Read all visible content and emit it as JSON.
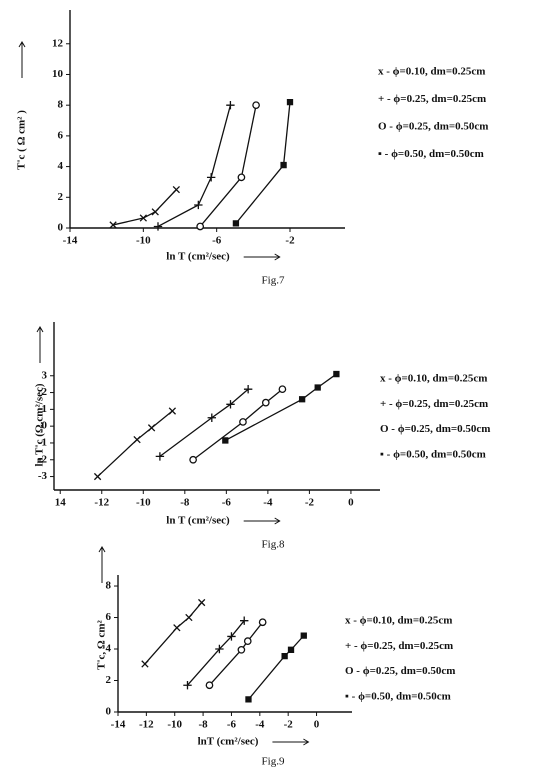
{
  "chart_data": [
    {
      "type": "line",
      "caption": "Fig.7",
      "xlabel": "ln T (cm²/sec)",
      "ylabel": "T'c ( Ω cm² )",
      "xlim": [
        -14,
        1
      ],
      "ylim": [
        0,
        14.2
      ],
      "xticks": [
        -14,
        -10,
        -6,
        -2
      ],
      "yticks": [
        0,
        2,
        4,
        6,
        8,
        10,
        12
      ],
      "grid": false,
      "series": [
        {
          "name": "x - ϕ=0.10, dm=0.25cm",
          "marker": "x",
          "x": [
            -11.65,
            -10.0,
            -9.35,
            -8.2
          ],
          "values": [
            0.2,
            0.65,
            1.05,
            2.5
          ]
        },
        {
          "name": "+ - ϕ=0.25, dm=0.25cm",
          "marker": "+",
          "x": [
            -9.2,
            -7.0,
            -6.3,
            -5.25
          ],
          "values": [
            0.1,
            1.5,
            3.3,
            8.0
          ]
        },
        {
          "name": "O - ϕ=0.25, dm=0.50cm",
          "marker": "o",
          "x": [
            -6.9,
            -4.65,
            -3.85
          ],
          "values": [
            0.1,
            3.3,
            8.0
          ]
        },
        {
          "name": "▪ - ϕ=0.50, dm=0.50cm",
          "marker": "s",
          "x": [
            -4.95,
            -2.35,
            -2.0
          ],
          "values": [
            0.3,
            4.1,
            8.2
          ]
        }
      ]
    },
    {
      "type": "line",
      "caption": "Fig.8",
      "xlabel": "ln T (cm²/sec)",
      "ylabel": "ln T'c (Ω.cm²/sec)",
      "xlim": [
        -14.3,
        1.4
      ],
      "ylim": [
        -3.8,
        6.2
      ],
      "xticks": [
        {
          "value": -14,
          "label": "14"
        },
        -12,
        -10,
        -8,
        -6,
        -4,
        -2,
        0
      ],
      "yticks": [
        -3,
        -2,
        -1,
        0,
        1,
        2,
        3
      ],
      "grid": false,
      "series": [
        {
          "name": "x - ϕ=0.10, dm=0.25cm",
          "marker": "x",
          "x": [
            -12.2,
            -10.3,
            -9.6,
            -8.6
          ],
          "values": [
            -3.0,
            -0.8,
            -0.1,
            0.9
          ]
        },
        {
          "name": "+ - ϕ=0.25, dm=0.25cm",
          "marker": "+",
          "x": [
            -9.2,
            -6.7,
            -5.8,
            -4.95
          ],
          "values": [
            -1.8,
            0.5,
            1.3,
            2.2
          ]
        },
        {
          "name": "O - ϕ=0.25, dm=0.50cm",
          "marker": "o",
          "x": [
            -7.6,
            -5.2,
            -4.1,
            -3.3
          ],
          "values": [
            -2.0,
            0.25,
            1.4,
            2.2
          ]
        },
        {
          "name": "▪ - ϕ=0.50, dm=0.50cm",
          "marker": "s",
          "x": [
            -6.05,
            -2.35,
            -1.6,
            -0.7
          ],
          "values": [
            -0.85,
            1.6,
            2.3,
            3.1
          ]
        }
      ]
    },
    {
      "type": "line",
      "caption": "Fig.9",
      "xlabel": "lnT (cm²/sec)",
      "ylabel": "T'c, Ω cm²",
      "xlim": [
        -14,
        2.5
      ],
      "ylim": [
        0,
        8.7
      ],
      "xticks": [
        -14,
        -12,
        -10,
        -8,
        -6,
        -4,
        -2,
        0
      ],
      "yticks": [
        0,
        2,
        4,
        6,
        8
      ],
      "grid": false,
      "series": [
        {
          "name": "x - ϕ=0.10, dm=0.25cm",
          "marker": "x",
          "x": [
            -12.1,
            -9.85,
            -9.0,
            -8.1
          ],
          "values": [
            3.05,
            5.35,
            6.0,
            6.95
          ]
        },
        {
          "name": "+ - ϕ=0.25, dm=0.25cm",
          "marker": "+",
          "x": [
            -9.1,
            -6.85,
            -6.0,
            -5.1
          ],
          "values": [
            1.7,
            4.0,
            4.8,
            5.8
          ]
        },
        {
          "name": "O - ϕ=0.25, dm=0.50cm",
          "marker": "o",
          "x": [
            -7.55,
            -5.3,
            -4.85,
            -3.8
          ],
          "values": [
            1.7,
            3.95,
            4.5,
            5.7
          ]
        },
        {
          "name": "▪ - ϕ=0.50, dm=0.50cm",
          "marker": "s",
          "x": [
            -4.8,
            -2.25,
            -1.8,
            -0.9
          ],
          "values": [
            0.8,
            3.55,
            3.95,
            4.85
          ]
        }
      ]
    }
  ]
}
